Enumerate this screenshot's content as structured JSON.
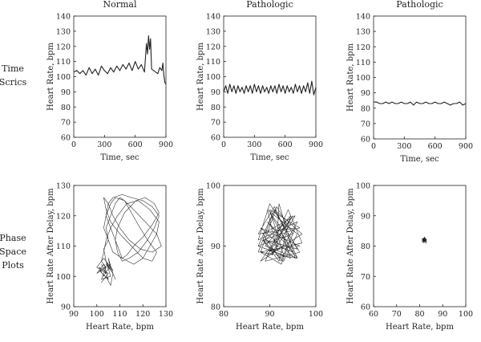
{
  "row_labels": {
    "time": [
      "Time",
      "Scrics"
    ],
    "phase": [
      "Phase",
      "Space",
      "Plots"
    ]
  },
  "chart_data": [
    {
      "id": "ts1",
      "type": "line",
      "title": "Normal",
      "xlabel": "Time, sec",
      "ylabel": "Heart Rate, bpm",
      "xlim": [
        0,
        900
      ],
      "ylim": [
        60,
        140
      ],
      "xticks": [
        0,
        300,
        600,
        900
      ],
      "yticks": [
        60,
        70,
        80,
        90,
        100,
        110,
        120,
        130,
        140
      ],
      "x": [
        0,
        30,
        60,
        90,
        120,
        150,
        180,
        210,
        240,
        270,
        300,
        330,
        360,
        390,
        420,
        450,
        480,
        510,
        540,
        570,
        600,
        630,
        660,
        690,
        700,
        710,
        720,
        730,
        740,
        750,
        760,
        780,
        800,
        820,
        840,
        860,
        870,
        880,
        890,
        900
      ],
      "y": [
        103,
        104,
        102,
        104,
        101,
        106,
        102,
        105,
        101,
        107,
        104,
        102,
        106,
        103,
        107,
        104,
        108,
        105,
        109,
        104,
        110,
        105,
        108,
        103,
        112,
        122,
        115,
        127,
        118,
        125,
        105,
        104,
        103,
        102,
        106,
        104,
        109,
        101,
        96,
        95
      ]
    },
    {
      "id": "ts2",
      "type": "line",
      "title": "Pathologic",
      "xlabel": "Time, sec",
      "ylabel": "Heart Rate, bpm",
      "xlim": [
        0,
        900
      ],
      "ylim": [
        60,
        140
      ],
      "xticks": [
        0,
        300,
        600,
        900
      ],
      "yticks": [
        60,
        70,
        80,
        90,
        100,
        110,
        120,
        130,
        140
      ],
      "x": [
        0,
        20,
        40,
        60,
        80,
        100,
        120,
        140,
        160,
        180,
        200,
        220,
        240,
        260,
        280,
        300,
        320,
        340,
        360,
        380,
        400,
        420,
        440,
        460,
        480,
        500,
        520,
        540,
        560,
        580,
        600,
        620,
        640,
        660,
        680,
        700,
        720,
        740,
        760,
        780,
        800,
        820,
        840,
        860,
        880,
        900
      ],
      "y": [
        90,
        94,
        89,
        95,
        90,
        94,
        89,
        94,
        90,
        93,
        89,
        94,
        90,
        94,
        89,
        95,
        90,
        94,
        89,
        94,
        90,
        93,
        89,
        94,
        90,
        94,
        89,
        95,
        90,
        94,
        89,
        94,
        90,
        93,
        89,
        95,
        90,
        94,
        89,
        94,
        90,
        96,
        89,
        97,
        88,
        93
      ]
    },
    {
      "id": "ts3",
      "type": "line",
      "title": "Pathologic",
      "xlabel": "Time, sec",
      "ylabel": "Heart Rate, bpm",
      "xlim": [
        0,
        900
      ],
      "ylim": [
        60,
        140
      ],
      "xticks": [
        0,
        300,
        600,
        900
      ],
      "yticks": [
        60,
        70,
        80,
        90,
        100,
        110,
        120,
        130,
        140
      ],
      "x": [
        0,
        30,
        60,
        90,
        120,
        150,
        180,
        210,
        240,
        270,
        300,
        330,
        360,
        390,
        420,
        450,
        480,
        510,
        540,
        570,
        600,
        630,
        660,
        690,
        720,
        750,
        780,
        810,
        840,
        870,
        900
      ],
      "y": [
        84,
        84,
        83,
        83,
        84,
        83,
        84,
        83,
        83,
        84,
        83,
        83,
        84,
        82,
        84,
        83,
        83,
        84,
        83,
        83,
        84,
        83,
        83,
        84,
        83,
        82,
        83,
        83,
        84,
        82,
        83
      ]
    },
    {
      "id": "ps1",
      "type": "line",
      "xlabel": "Heart Rate, bpm",
      "ylabel": "Heart Rate After Delay, bpm",
      "xlim": [
        90,
        130
      ],
      "ylim": [
        90,
        130
      ],
      "xticks": [
        90,
        100,
        110,
        120,
        130
      ],
      "yticks": [
        90,
        100,
        110,
        120,
        130
      ],
      "x": [
        102,
        104,
        100,
        103,
        107,
        104,
        106,
        102,
        104,
        100,
        103,
        105,
        101,
        106,
        103,
        101,
        105,
        102,
        104,
        106,
        107,
        108,
        106,
        104,
        107,
        105,
        106,
        104,
        103,
        105,
        103,
        104,
        105,
        107,
        111,
        115,
        120,
        124,
        127,
        125,
        122,
        118,
        114,
        111,
        109,
        108,
        109,
        112,
        117,
        121,
        125,
        127,
        124,
        120,
        116,
        113,
        111,
        110,
        108,
        106,
        104,
        106,
        108,
        112,
        116,
        121,
        126,
        128,
        124,
        119,
        114,
        110,
        107,
        105,
        103,
        104,
        106,
        110,
        115,
        120,
        124,
        126,
        122,
        118,
        115,
        112,
        110,
        108,
        106,
        104,
        105,
        107,
        111,
        116,
        120,
        123,
        126,
        127,
        123,
        118,
        113,
        109,
        106,
        104,
        103,
        102,
        104,
        103
      ],
      "y": [
        104,
        101,
        103,
        106,
        102,
        105,
        100,
        99,
        103,
        101,
        104,
        99,
        102,
        104,
        100,
        103,
        101,
        98,
        100,
        97,
        101,
        99,
        103,
        104,
        101,
        106,
        102,
        105,
        109,
        112,
        116,
        120,
        124,
        126,
        127,
        126,
        125,
        123,
        120,
        116,
        112,
        108,
        106,
        105,
        108,
        112,
        116,
        121,
        125,
        126,
        124,
        121,
        117,
        113,
        110,
        107,
        106,
        108,
        112,
        116,
        120,
        124,
        126,
        125,
        122,
        118,
        114,
        110,
        108,
        109,
        112,
        116,
        120,
        124,
        126,
        122,
        118,
        114,
        110,
        106,
        105,
        108,
        112,
        117,
        121,
        125,
        126,
        124,
        120,
        116,
        112,
        108,
        106,
        104,
        106,
        110,
        114,
        118,
        122,
        125,
        124,
        120,
        116,
        112,
        108,
        105,
        103,
        104
      ]
    },
    {
      "id": "ps2",
      "type": "line",
      "xlabel": "Heart Rate, bpm",
      "ylabel": "Heart Rate After Delay, bpm",
      "xlim": [
        80,
        100
      ],
      "ylim": [
        80,
        100
      ],
      "xticks": [
        80,
        90,
        100
      ],
      "yticks": [
        80,
        90,
        100
      ],
      "x": [
        92,
        95.5,
        88,
        96.5,
        87.5,
        91,
        97,
        88,
        95,
        89.5,
        93,
        96,
        87.5,
        90,
        96.5,
        89,
        94,
        97,
        88,
        92.5,
        95.5,
        87.5,
        91,
        96,
        89,
        94.5,
        92,
        88.5,
        96.5,
        90,
        93,
        87.5,
        95,
        91.5,
        88,
        96,
        89.5,
        94,
        92.5,
        88.5,
        95.5,
        90.5,
        93.5,
        89,
        96,
        91,
        87.5,
        94.5,
        92,
        90,
        95,
        88.5,
        93,
        96,
        89.5,
        91.5,
        92
      ],
      "y": [
        97,
        88,
        93,
        90,
        89,
        96,
        92,
        87.5,
        95,
        88.5,
        90,
        94,
        91,
        97,
        89,
        87.5,
        96,
        90.5,
        89,
        87,
        93,
        92,
        96.5,
        88,
        90,
        95,
        87.5,
        91,
        93,
        96,
        88.5,
        90,
        92,
        96.5,
        89,
        88,
        94,
        90.5,
        87.5,
        92,
        95,
        88.5,
        94,
        91,
        89.5,
        96,
        90,
        88,
        93.5,
        95.5,
        89,
        91,
        87.5,
        92,
        96,
        89.5,
        97
      ]
    },
    {
      "id": "ps3",
      "type": "line",
      "xlabel": "Heart Rate, bpm",
      "ylabel": "Heart Rate After Delay, bpm",
      "xlim": [
        60,
        100
      ],
      "ylim": [
        60,
        100
      ],
      "xticks": [
        60,
        70,
        80,
        90,
        100
      ],
      "yticks": [
        60,
        70,
        80,
        90,
        100
      ],
      "x": [
        82,
        83,
        81.5,
        82.5,
        81,
        83,
        82,
        81.5,
        83,
        82.5,
        81,
        82
      ],
      "y": [
        83,
        82,
        81,
        82.5,
        81.5,
        81,
        83,
        82,
        81.5,
        82,
        82.5,
        81.5
      ]
    }
  ]
}
